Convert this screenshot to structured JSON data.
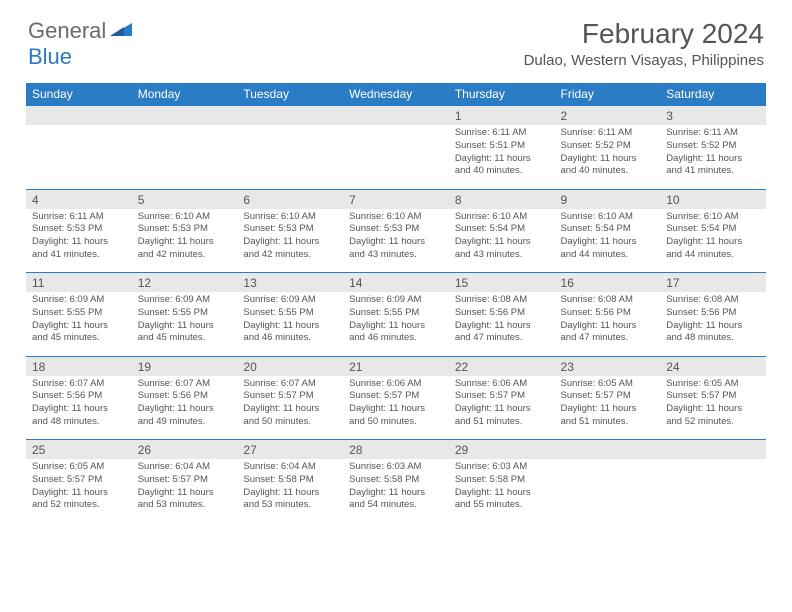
{
  "logo": {
    "text1": "General",
    "text2": "Blue",
    "color1": "#6b6b6b",
    "color2": "#2a7cc4"
  },
  "title": "February 2024",
  "location": "Dulao, Western Visayas, Philippines",
  "headerColor": "#2a7cc4",
  "dayNames": [
    "Sunday",
    "Monday",
    "Tuesday",
    "Wednesday",
    "Thursday",
    "Friday",
    "Saturday"
  ],
  "weeks": [
    [
      null,
      null,
      null,
      null,
      {
        "n": "1",
        "sr": "6:11 AM",
        "ss": "5:51 PM",
        "dl": "11 hours and 40 minutes."
      },
      {
        "n": "2",
        "sr": "6:11 AM",
        "ss": "5:52 PM",
        "dl": "11 hours and 40 minutes."
      },
      {
        "n": "3",
        "sr": "6:11 AM",
        "ss": "5:52 PM",
        "dl": "11 hours and 41 minutes."
      }
    ],
    [
      {
        "n": "4",
        "sr": "6:11 AM",
        "ss": "5:53 PM",
        "dl": "11 hours and 41 minutes."
      },
      {
        "n": "5",
        "sr": "6:10 AM",
        "ss": "5:53 PM",
        "dl": "11 hours and 42 minutes."
      },
      {
        "n": "6",
        "sr": "6:10 AM",
        "ss": "5:53 PM",
        "dl": "11 hours and 42 minutes."
      },
      {
        "n": "7",
        "sr": "6:10 AM",
        "ss": "5:53 PM",
        "dl": "11 hours and 43 minutes."
      },
      {
        "n": "8",
        "sr": "6:10 AM",
        "ss": "5:54 PM",
        "dl": "11 hours and 43 minutes."
      },
      {
        "n": "9",
        "sr": "6:10 AM",
        "ss": "5:54 PM",
        "dl": "11 hours and 44 minutes."
      },
      {
        "n": "10",
        "sr": "6:10 AM",
        "ss": "5:54 PM",
        "dl": "11 hours and 44 minutes."
      }
    ],
    [
      {
        "n": "11",
        "sr": "6:09 AM",
        "ss": "5:55 PM",
        "dl": "11 hours and 45 minutes."
      },
      {
        "n": "12",
        "sr": "6:09 AM",
        "ss": "5:55 PM",
        "dl": "11 hours and 45 minutes."
      },
      {
        "n": "13",
        "sr": "6:09 AM",
        "ss": "5:55 PM",
        "dl": "11 hours and 46 minutes."
      },
      {
        "n": "14",
        "sr": "6:09 AM",
        "ss": "5:55 PM",
        "dl": "11 hours and 46 minutes."
      },
      {
        "n": "15",
        "sr": "6:08 AM",
        "ss": "5:56 PM",
        "dl": "11 hours and 47 minutes."
      },
      {
        "n": "16",
        "sr": "6:08 AM",
        "ss": "5:56 PM",
        "dl": "11 hours and 47 minutes."
      },
      {
        "n": "17",
        "sr": "6:08 AM",
        "ss": "5:56 PM",
        "dl": "11 hours and 48 minutes."
      }
    ],
    [
      {
        "n": "18",
        "sr": "6:07 AM",
        "ss": "5:56 PM",
        "dl": "11 hours and 48 minutes."
      },
      {
        "n": "19",
        "sr": "6:07 AM",
        "ss": "5:56 PM",
        "dl": "11 hours and 49 minutes."
      },
      {
        "n": "20",
        "sr": "6:07 AM",
        "ss": "5:57 PM",
        "dl": "11 hours and 50 minutes."
      },
      {
        "n": "21",
        "sr": "6:06 AM",
        "ss": "5:57 PM",
        "dl": "11 hours and 50 minutes."
      },
      {
        "n": "22",
        "sr": "6:06 AM",
        "ss": "5:57 PM",
        "dl": "11 hours and 51 minutes."
      },
      {
        "n": "23",
        "sr": "6:05 AM",
        "ss": "5:57 PM",
        "dl": "11 hours and 51 minutes."
      },
      {
        "n": "24",
        "sr": "6:05 AM",
        "ss": "5:57 PM",
        "dl": "11 hours and 52 minutes."
      }
    ],
    [
      {
        "n": "25",
        "sr": "6:05 AM",
        "ss": "5:57 PM",
        "dl": "11 hours and 52 minutes."
      },
      {
        "n": "26",
        "sr": "6:04 AM",
        "ss": "5:57 PM",
        "dl": "11 hours and 53 minutes."
      },
      {
        "n": "27",
        "sr": "6:04 AM",
        "ss": "5:58 PM",
        "dl": "11 hours and 53 minutes."
      },
      {
        "n": "28",
        "sr": "6:03 AM",
        "ss": "5:58 PM",
        "dl": "11 hours and 54 minutes."
      },
      {
        "n": "29",
        "sr": "6:03 AM",
        "ss": "5:58 PM",
        "dl": "11 hours and 55 minutes."
      },
      null,
      null
    ]
  ],
  "labels": {
    "sunrise": "Sunrise:",
    "sunset": "Sunset:",
    "daylight": "Daylight:"
  }
}
